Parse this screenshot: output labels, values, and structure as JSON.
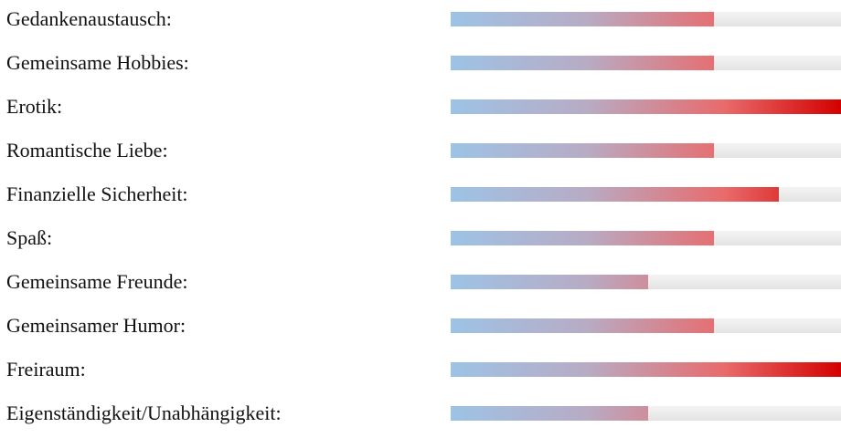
{
  "ratings": [
    {
      "label": "Gedankenaustausch:",
      "level": 0.675
    },
    {
      "label": "Gemeinsame Hobbies:",
      "level": 0.675
    },
    {
      "label": "Erotik:",
      "level": 1.0
    },
    {
      "label": "Romantische Liebe:",
      "level": 0.675
    },
    {
      "label": "Finanzielle Sicherheit:",
      "level": 0.84
    },
    {
      "label": "Spaß:",
      "level": 0.675
    },
    {
      "label": "Gemeinsame Freunde:",
      "level": 0.505
    },
    {
      "label": "Gemeinsamer Humor:",
      "level": 0.675
    },
    {
      "label": "Freiraum:",
      "level": 1.0
    },
    {
      "label": "Eigenständigkeit/Unabhängigkeit:",
      "level": 0.505
    }
  ],
  "colors": {
    "bar_start": "#9dc3e6",
    "bar_end": "#d40000",
    "track": "#e8e8e8"
  }
}
